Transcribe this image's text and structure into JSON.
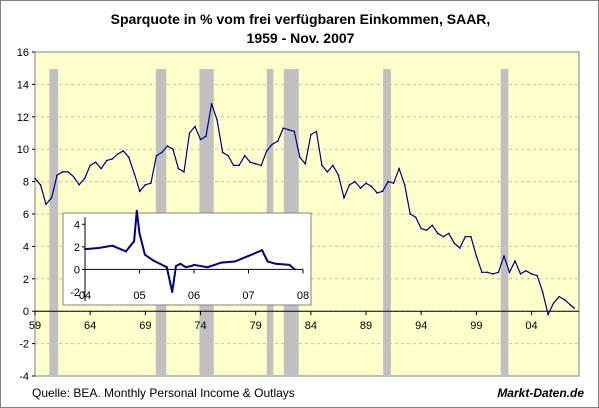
{
  "header": {
    "title_line1": "Sparquote in % vom frei verfügbaren Einkommen, SAAR,",
    "title_line2": "1959 - Nov. 2007"
  },
  "footer": {
    "source": "Quelle: BEA. Monthly Personal Income & Outlays",
    "brand": "Markt-Daten.de"
  },
  "colors": {
    "plot_background": "#ffffcc",
    "series": "#000080",
    "recession": "#c0c0c0",
    "grid": "#c0c0c0"
  },
  "chart_data": [
    {
      "type": "line",
      "series": [
        {
          "values_x": [
            1959.0,
            1959.5,
            1960.0,
            1960.5,
            1961.0,
            1961.5,
            1962.0,
            1962.5,
            1963.0,
            1963.5,
            1964.0,
            1964.5,
            1965.0,
            1965.5,
            1966.0,
            1966.5,
            1967.0,
            1967.5,
            1968.0,
            1968.5,
            1969.0,
            1969.5,
            1970.0,
            1970.5,
            1971.0,
            1971.5,
            1972.0,
            1972.5,
            1973.0,
            1973.5,
            1974.0,
            1974.5,
            1975.0,
            1975.5,
            1976.0,
            1976.5,
            1977.0,
            1977.5,
            1978.0,
            1978.5,
            1979.0,
            1979.5,
            1980.0,
            1980.5,
            1981.0,
            1981.5,
            1982.0,
            1982.5,
            1983.0,
            1983.5,
            1984.0,
            1984.5,
            1985.0,
            1985.5,
            1986.0,
            1986.5,
            1987.0,
            1987.5,
            1988.0,
            1988.5,
            1989.0,
            1989.5,
            1990.0,
            1990.5,
            1991.0,
            1991.5,
            1992.0,
            1992.5,
            1993.0,
            1993.5,
            1994.0,
            1994.5,
            1995.0,
            1995.5,
            1996.0,
            1996.5,
            1997.0,
            1997.5,
            1998.0,
            1998.5,
            1999.0,
            1999.5,
            2000.0,
            2000.5,
            2001.0,
            2001.5,
            2002.0,
            2002.5,
            2003.0,
            2003.5,
            2004.0,
            2004.5,
            2005.0,
            2005.5,
            2006.0,
            2006.5,
            2007.0,
            2007.5,
            2007.85
          ],
          "values_y": [
            8.2,
            7.8,
            6.6,
            7.0,
            8.4,
            8.6,
            8.6,
            8.3,
            7.8,
            8.2,
            9.0,
            9.2,
            8.8,
            9.3,
            9.4,
            9.7,
            9.9,
            9.5,
            8.5,
            7.4,
            7.8,
            7.9,
            9.6,
            9.8,
            10.2,
            10.0,
            8.8,
            8.6,
            11.0,
            11.4,
            10.6,
            10.8,
            12.8,
            11.8,
            9.8,
            9.6,
            9.0,
            9.0,
            9.6,
            9.2,
            9.1,
            9.0,
            9.9,
            10.3,
            10.5,
            11.3,
            11.2,
            11.1,
            9.5,
            9.1,
            10.9,
            11.1,
            9.0,
            8.6,
            9.0,
            8.4,
            7.0,
            7.8,
            8.0,
            7.6,
            7.9,
            7.7,
            7.3,
            7.4,
            8.0,
            7.9,
            8.8,
            7.8,
            6.0,
            5.8,
            5.1,
            5.0,
            5.3,
            4.8,
            4.6,
            4.8,
            4.2,
            3.9,
            4.6,
            4.6,
            3.4,
            2.4,
            2.4,
            2.3,
            2.4,
            3.4,
            2.4,
            3.1,
            2.3,
            2.5,
            2.3,
            2.2,
            1.2,
            -0.2,
            0.5,
            0.9,
            0.7,
            0.4,
            0.2
          ]
        }
      ],
      "recession_bands": [
        [
          1960.3,
          1961.1
        ],
        [
          1969.95,
          1970.9
        ],
        [
          1973.9,
          1975.2
        ],
        [
          1980.0,
          1980.6
        ],
        [
          1981.55,
          1982.9
        ],
        [
          1990.55,
          1991.25
        ],
        [
          2001.2,
          2001.9
        ]
      ],
      "xlim": [
        1959,
        2008.3
      ],
      "ylim": [
        -4,
        16
      ],
      "x_ticks": [
        1959,
        1964,
        1969,
        1974,
        1979,
        1984,
        1989,
        1994,
        1999,
        2004
      ],
      "x_tick_labels": [
        "59",
        "64",
        "69",
        "74",
        "79",
        "84",
        "89",
        "94",
        "99",
        "04"
      ],
      "y_ticks": [
        -4,
        -2,
        0,
        2,
        4,
        6,
        8,
        10,
        12,
        14,
        16
      ],
      "y_tick_labels": [
        "-4",
        "-2",
        "0",
        "2",
        "4",
        "6",
        "8",
        "10",
        "12",
        "14",
        "16"
      ],
      "grid": true,
      "title": "Sparquote in % vom frei verfügbaren Einkommen, SAAR, 1959 - Nov. 2007"
    },
    {
      "type": "line",
      "series": [
        {
          "values_x": [
            2004.0,
            2004.25,
            2004.5,
            2004.75,
            2004.9,
            2004.95,
            2005.0,
            2005.1,
            2005.25,
            2005.5,
            2005.6,
            2005.67,
            2005.75,
            2005.85,
            2005.95,
            2006.0,
            2006.25,
            2006.5,
            2006.75,
            2007.0,
            2007.25,
            2007.35,
            2007.5,
            2007.75,
            2007.85
          ],
          "values_y": [
            1.8,
            1.9,
            2.1,
            1.6,
            2.5,
            5.2,
            3.2,
            1.3,
            0.8,
            0.2,
            -2.0,
            0.3,
            0.5,
            0.2,
            0.3,
            0.4,
            0.2,
            0.6,
            0.7,
            1.2,
            1.7,
            0.7,
            0.5,
            0.4,
            0.0
          ]
        }
      ],
      "xlim": [
        2004,
        2008
      ],
      "ylim": [
        -2.8,
        5.0
      ],
      "x_ticks": [
        2004,
        2005,
        2006,
        2007,
        2008
      ],
      "x_tick_labels": [
        "04",
        "05",
        "06",
        "07",
        "08"
      ],
      "y_ticks": [
        -2,
        0,
        2,
        4
      ],
      "y_tick_labels": [
        "-2",
        "0",
        "2",
        "4"
      ]
    }
  ]
}
